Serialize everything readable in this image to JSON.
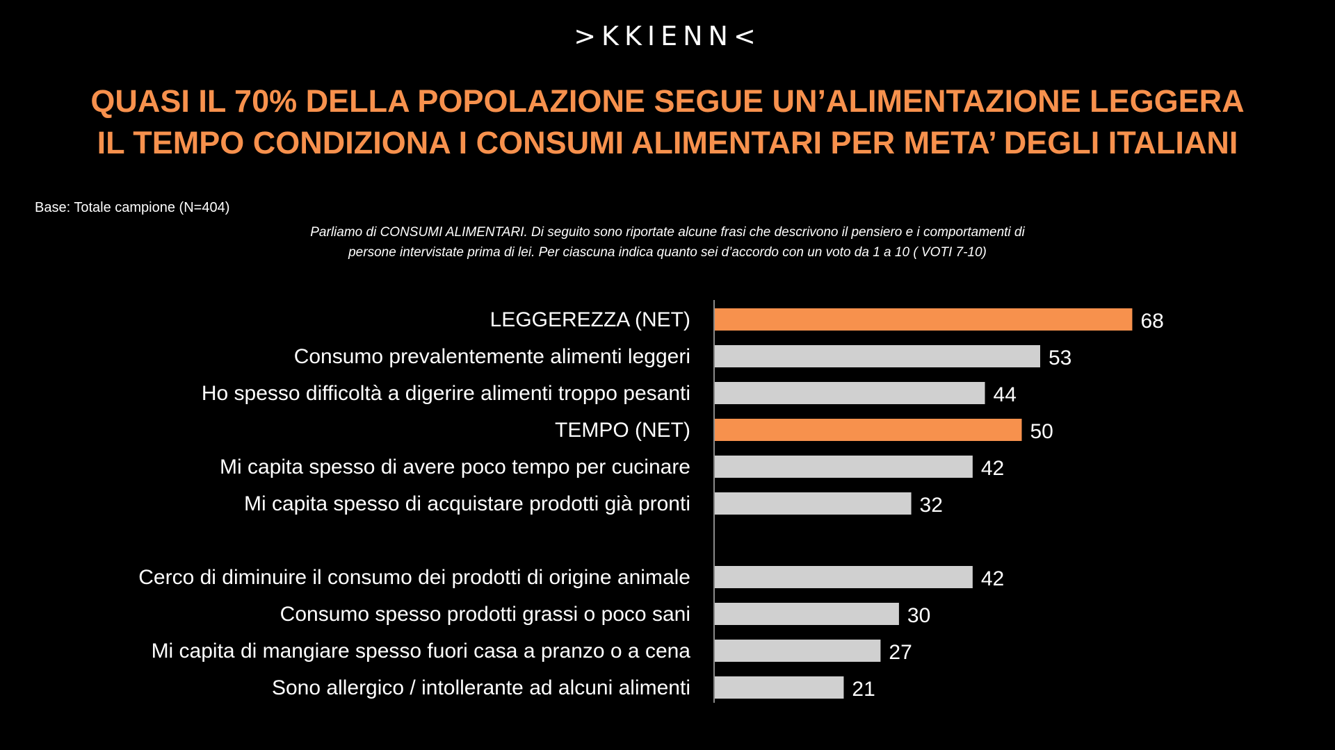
{
  "header": {
    "logo": ">KKIENN<",
    "title_line1": "QUASI IL 70% DELLA POPOLAZIONE SEGUE UN’ALIMENTAZIONE LEGGERA",
    "title_line2": "IL TEMPO CONDIZIONA I CONSUMI ALIMENTARI PER META’ DEGLI ITALIANI",
    "base": "Base: Totale campione (N=404)",
    "question_line1": "Parliamo di CONSUMI ALIMENTARI. Di seguito sono riportate alcune frasi che descrivono il pensiero e i comportamenti di",
    "question_line2": "persone intervistate prima di lei. Per ciascuna indica quanto sei d’accordo con un voto da 1 a 10 ( VOTI 7-10)"
  },
  "colors": {
    "background": "#000000",
    "accent": "#f7914d",
    "bar_highlight": "#f7914d",
    "bar_default": "#d0d0d0",
    "text": "#ffffff"
  },
  "chart_data": {
    "type": "bar",
    "orientation": "horizontal",
    "categories": [
      "LEGGEREZZA (NET)",
      "Consumo prevalentemente alimenti  leggeri",
      "Ho spesso difficoltà a digerire alimenti troppo pesanti",
      "TEMPO (NET)",
      "Mi capita spesso di avere poco tempo per cucinare",
      "Mi capita spesso di acquistare prodotti già pronti",
      "Cerco di diminuire il consumo dei prodotti di origine animale",
      "Consumo spesso prodotti grassi o poco sani",
      "Mi capita di mangiare spesso fuori casa a pranzo o a cena",
      "Sono allergico / intollerante ad alcuni alimenti"
    ],
    "values": [
      68,
      53,
      44,
      50,
      42,
      32,
      42,
      30,
      27,
      21
    ],
    "highlighted": [
      true,
      false,
      false,
      true,
      false,
      false,
      false,
      false,
      false,
      false
    ],
    "data_labels": [
      "68",
      "53",
      "44",
      "50",
      "42",
      "32",
      "42",
      "30",
      "27",
      "21"
    ],
    "xlim": [
      0,
      100
    ],
    "grid": false,
    "legend": "none"
  }
}
